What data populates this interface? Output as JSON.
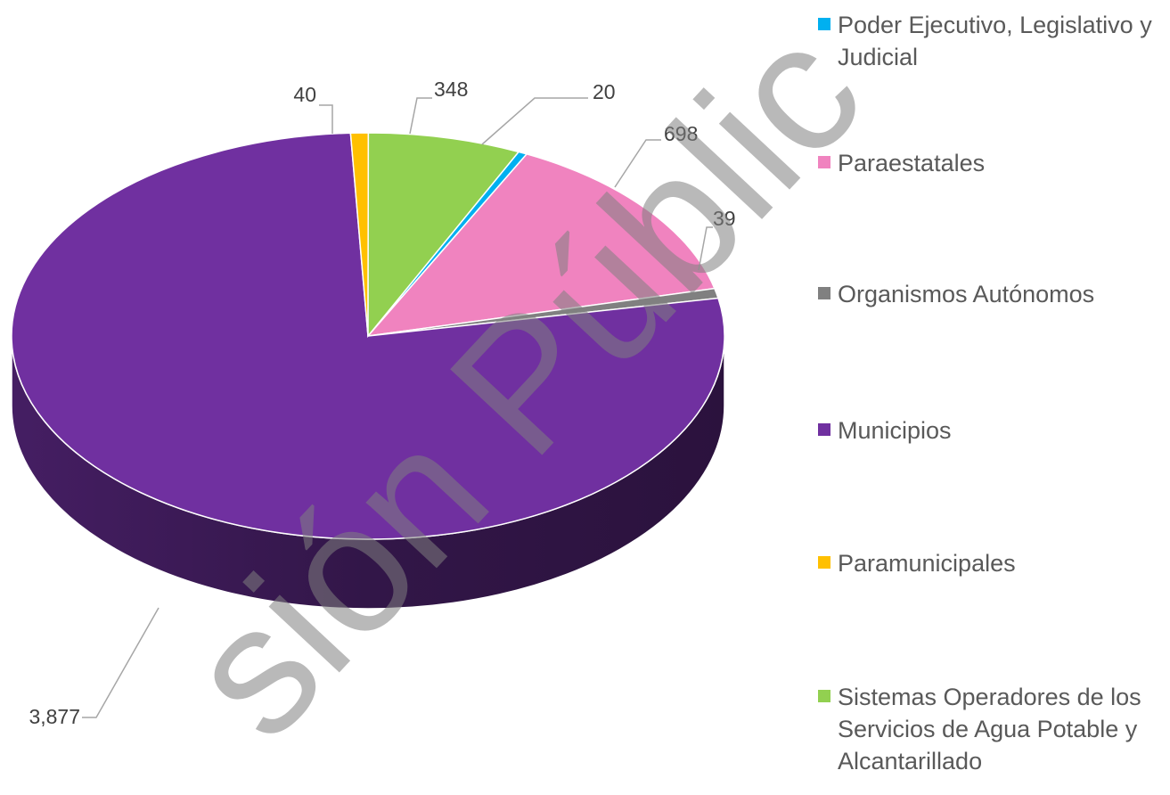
{
  "chart_data": {
    "type": "pie",
    "categories": [
      "Poder Ejecutivo, Legislativo y Judicial",
      "Paraestatales",
      "Organismos Autónomos",
      "Municipios",
      "Paramunicipales",
      "Sistemas Operadores de los Servicios de Agua Potable y Alcantarillado"
    ],
    "values": [
      20,
      698,
      39,
      3877,
      40,
      348
    ],
    "value_labels": [
      "20",
      "698",
      "39",
      "3,877",
      "40",
      "348"
    ],
    "colors": [
      "#00b0f0",
      "#f083bf",
      "#808080",
      "#7030a0",
      "#ffc000",
      "#92d050"
    ],
    "legend": "right",
    "watermark": "sión Públic"
  }
}
